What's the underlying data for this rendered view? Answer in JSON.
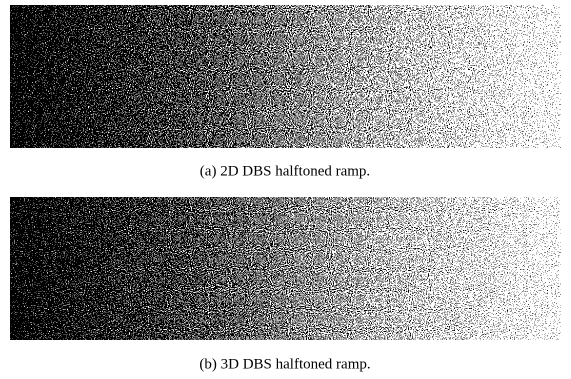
{
  "figures": [
    {
      "caption": "(a) 2D DBS halftoned ramp."
    },
    {
      "caption": "(b) 3D DBS halftoned ramp."
    }
  ]
}
